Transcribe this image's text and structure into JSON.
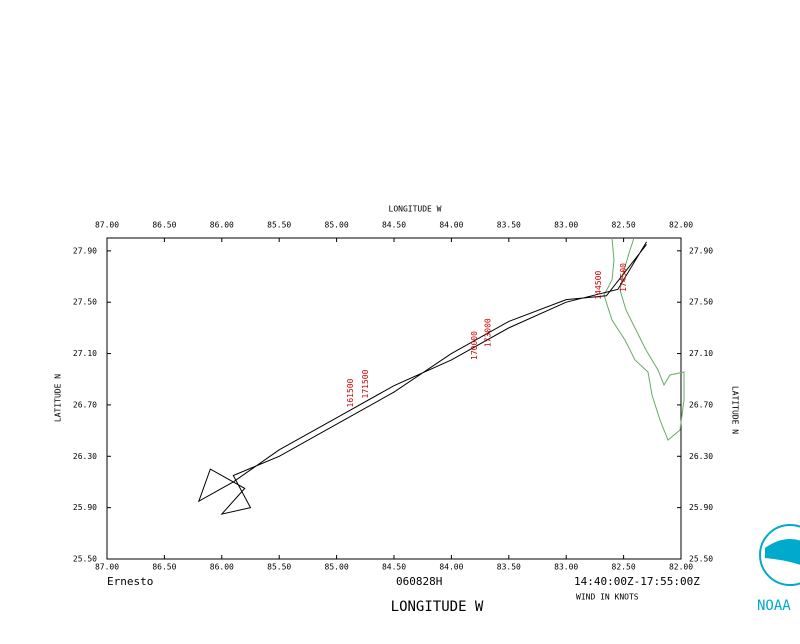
{
  "chart_data": {
    "type": "line",
    "top_axis_label": "LONGITUDE  W",
    "x_axis_label": "LONGITUDE  W",
    "y_axis_label": "LATITUDE  N",
    "right_axis_label": "LATITUDE  N",
    "storm": "Ernesto",
    "flight": "060828H",
    "time_range": "14:40:00Z-17:55:00Z",
    "units_note": "WIND IN KNOTS",
    "logo": "NOAA",
    "color": "#000000",
    "coast_color": "#66aa66",
    "xlim": [
      87,
      82
    ],
    "ylim": [
      25.5,
      28.0
    ],
    "xticks": [
      {
        "value": 87,
        "label": "87.00"
      },
      {
        "value": 86.5,
        "label": "86.50"
      },
      {
        "value": 86,
        "label": "86.00"
      },
      {
        "value": 85.5,
        "label": "85.50"
      },
      {
        "value": 85,
        "label": "85.00"
      },
      {
        "value": 84.5,
        "label": "84.50"
      },
      {
        "value": 84,
        "label": "84.00"
      },
      {
        "value": 83.5,
        "label": "83.50"
      },
      {
        "value": 83,
        "label": "83.00"
      },
      {
        "value": 82.5,
        "label": "82.50"
      },
      {
        "value": 82,
        "label": "82.00"
      }
    ],
    "yticks": [
      {
        "value": 25.5,
        "label": "25.50"
      },
      {
        "value": 25.9,
        "label": "25.90"
      },
      {
        "value": 26.3,
        "label": "26.30"
      },
      {
        "value": 26.7,
        "label": "26.70"
      },
      {
        "value": 27.1,
        "label": "27.10"
      },
      {
        "value": 27.5,
        "label": "27.50"
      },
      {
        "value": 27.9,
        "label": "27.90"
      }
    ],
    "x": [
      82.3,
      82.55,
      83.0,
      83.5,
      84.0,
      84.5,
      85.0,
      85.5,
      85.9,
      86.2,
      86.1,
      85.8,
      86.0,
      85.75,
      85.9,
      85.5,
      85.0,
      84.5,
      84.0,
      83.5,
      83.0,
      82.65,
      82.3
    ],
    "values": [
      27.97,
      27.6,
      27.5,
      27.3,
      27.05,
      26.85,
      26.6,
      26.35,
      26.1,
      25.95,
      26.2,
      26.05,
      25.85,
      25.9,
      26.15,
      26.3,
      26.55,
      26.8,
      27.1,
      27.35,
      27.52,
      27.55,
      27.95
    ],
    "annotations": [
      {
        "text": "144500",
        "x": 82.72,
        "y": 27.52
      },
      {
        "text": "174500",
        "x": 82.5,
        "y": 27.58
      },
      {
        "text": "173000",
        "x": 83.68,
        "y": 27.15
      },
      {
        "text": "170000",
        "x": 83.8,
        "y": 27.05
      },
      {
        "text": "171500",
        "x": 84.75,
        "y": 26.75
      },
      {
        "text": "161500",
        "x": 84.88,
        "y": 26.68
      }
    ]
  }
}
